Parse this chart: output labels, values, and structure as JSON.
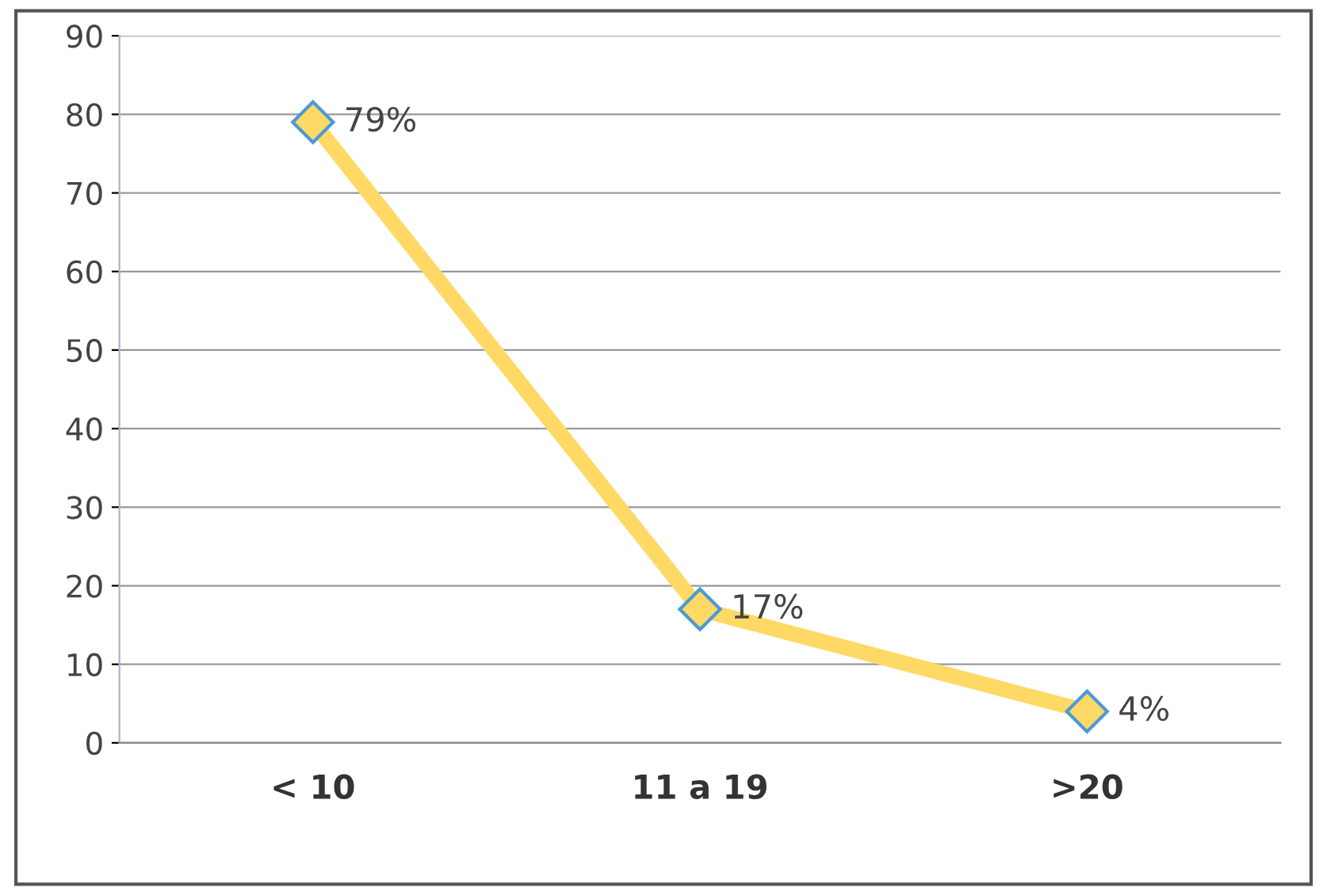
{
  "chart_data": {
    "type": "line",
    "categories": [
      "< 10",
      "11 a 19",
      ">20"
    ],
    "series": [
      {
        "color": "#ffd966",
        "values": [
          79,
          17,
          4
        ],
        "value_labels": [
          "79%",
          "17%",
          "4%"
        ]
      }
    ],
    "ylim": [
      0,
      90
    ],
    "yticks": [
      0,
      10,
      20,
      30,
      40,
      50,
      60,
      70,
      80,
      90
    ],
    "grid": "y",
    "marker": "diamond",
    "line_style": "solid",
    "legend": false
  }
}
